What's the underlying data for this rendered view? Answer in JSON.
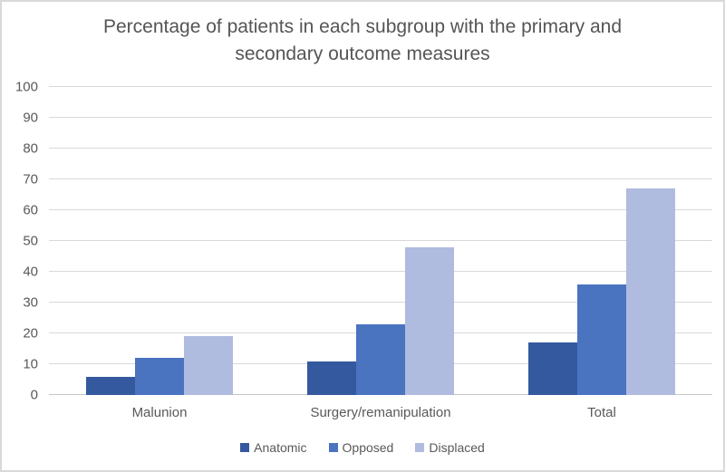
{
  "chart_data": {
    "type": "bar",
    "title": "Percentage of patients in each subgroup with the primary and secondary outcome measures",
    "categories": [
      "Malunion",
      "Surgery/remanipulation",
      "Total"
    ],
    "series": [
      {
        "name": "Anatomic",
        "color": "#35599E",
        "values": [
          6,
          11,
          17
        ]
      },
      {
        "name": "Opposed",
        "color": "#4A73C0",
        "values": [
          12,
          23,
          36
        ]
      },
      {
        "name": "Displaced",
        "color": "#AFBBDF",
        "values": [
          19,
          48,
          67
        ]
      }
    ],
    "xlabel": "",
    "ylabel": "",
    "ylim": [
      0,
      100
    ],
    "yticks": [
      0,
      10,
      20,
      30,
      40,
      50,
      60,
      70,
      80,
      90,
      100
    ],
    "grid": true,
    "legend_position": "bottom",
    "gridline_color": "#d9d9d9",
    "axis_line_color": "#c6c6c6",
    "text_color": "#595959",
    "title_color": "#555555",
    "background_color": "#ffffff",
    "border_color": "#d9d9d9"
  }
}
